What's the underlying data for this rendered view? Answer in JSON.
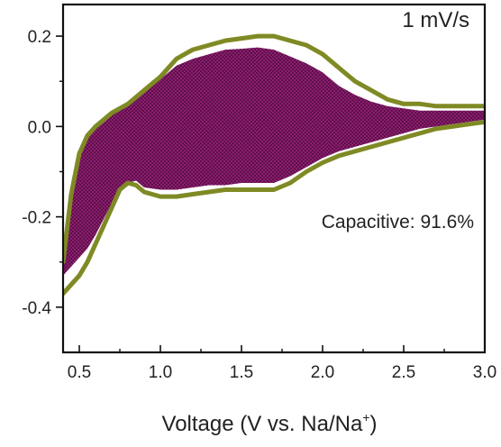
{
  "chart_data": {
    "type": "area",
    "title": "",
    "xlabel": "Voltage (V vs. Na/Na",
    "xlabel_superscript": "+",
    "xlabel_suffix": ")",
    "ylabel": "",
    "xlim": [
      0.4,
      3.0
    ],
    "ylim": [
      -0.5,
      0.27
    ],
    "x_ticks": [
      0.5,
      1.0,
      1.5,
      2.0,
      2.5,
      3.0
    ],
    "x_tick_labels": [
      "0.5",
      "1.0",
      "1.5",
      "2.0",
      "2.5",
      "3.0"
    ],
    "y_ticks": [
      0.2,
      0.0,
      -0.2,
      -0.4
    ],
    "y_tick_labels": [
      "0.2",
      "0.0",
      "-0.2",
      "-0.4"
    ],
    "grid": false,
    "annotations": {
      "scan_rate": "1 mV/s",
      "capacitive": "Capacitive: 91.6%"
    },
    "colors": {
      "total_cv": "#7f8a24",
      "capacitive_fill": "#8b1f6f",
      "capacitive_fill_dark": "#5e0f4a"
    },
    "series": [
      {
        "role": "total CV (upper branch)",
        "x": [
          0.4,
          0.45,
          0.5,
          0.55,
          0.6,
          0.7,
          0.8,
          0.9,
          1.0,
          1.1,
          1.2,
          1.3,
          1.4,
          1.5,
          1.6,
          1.7,
          1.8,
          1.9,
          2.0,
          2.1,
          2.2,
          2.3,
          2.4,
          2.5,
          2.6,
          2.7,
          2.8,
          2.9,
          3.0
        ],
        "y": [
          -0.3,
          -0.15,
          -0.06,
          -0.02,
          0.0,
          0.03,
          0.05,
          0.08,
          0.11,
          0.15,
          0.17,
          0.18,
          0.19,
          0.195,
          0.2,
          0.2,
          0.19,
          0.18,
          0.16,
          0.13,
          0.1,
          0.08,
          0.06,
          0.05,
          0.05,
          0.045,
          0.045,
          0.045,
          0.045
        ]
      },
      {
        "role": "total CV (lower branch)",
        "x": [
          0.4,
          0.45,
          0.5,
          0.55,
          0.6,
          0.7,
          0.75,
          0.8,
          0.85,
          0.9,
          1.0,
          1.1,
          1.2,
          1.3,
          1.4,
          1.5,
          1.6,
          1.7,
          1.8,
          1.9,
          2.0,
          2.1,
          2.2,
          2.3,
          2.4,
          2.5,
          2.6,
          2.7,
          2.8,
          2.9,
          3.0
        ],
        "y": [
          -0.37,
          -0.35,
          -0.33,
          -0.3,
          -0.26,
          -0.18,
          -0.14,
          -0.125,
          -0.13,
          -0.145,
          -0.155,
          -0.155,
          -0.15,
          -0.145,
          -0.14,
          -0.14,
          -0.14,
          -0.14,
          -0.125,
          -0.1,
          -0.08,
          -0.065,
          -0.055,
          -0.045,
          -0.035,
          -0.025,
          -0.015,
          -0.005,
          0.0,
          0.005,
          0.01
        ]
      },
      {
        "role": "capacitive (upper branch)",
        "x": [
          0.4,
          0.45,
          0.5,
          0.55,
          0.6,
          0.7,
          0.8,
          0.9,
          1.0,
          1.1,
          1.2,
          1.3,
          1.4,
          1.5,
          1.6,
          1.7,
          1.8,
          1.9,
          2.0,
          2.1,
          2.2,
          2.3,
          2.4,
          2.5,
          2.6,
          2.7,
          2.8,
          2.9,
          3.0
        ],
        "y": [
          -0.28,
          -0.13,
          -0.05,
          -0.015,
          0.005,
          0.035,
          0.055,
          0.085,
          0.105,
          0.135,
          0.15,
          0.16,
          0.17,
          0.172,
          0.175,
          0.17,
          0.155,
          0.14,
          0.12,
          0.09,
          0.07,
          0.055,
          0.045,
          0.04,
          0.035,
          0.035,
          0.035,
          0.035,
          0.035
        ]
      },
      {
        "role": "capacitive (lower branch)",
        "x": [
          0.4,
          0.45,
          0.5,
          0.55,
          0.6,
          0.7,
          0.75,
          0.8,
          0.85,
          0.9,
          1.0,
          1.1,
          1.2,
          1.3,
          1.4,
          1.5,
          1.6,
          1.7,
          1.8,
          1.9,
          2.0,
          2.1,
          2.2,
          2.3,
          2.4,
          2.5,
          2.6,
          2.7,
          2.8,
          2.9,
          3.0
        ],
        "y": [
          -0.33,
          -0.31,
          -0.29,
          -0.27,
          -0.24,
          -0.17,
          -0.135,
          -0.125,
          -0.12,
          -0.135,
          -0.14,
          -0.14,
          -0.135,
          -0.13,
          -0.13,
          -0.125,
          -0.125,
          -0.125,
          -0.11,
          -0.09,
          -0.07,
          -0.055,
          -0.045,
          -0.035,
          -0.025,
          -0.015,
          -0.005,
          0.0,
          0.005,
          0.01,
          0.015
        ]
      }
    ]
  }
}
